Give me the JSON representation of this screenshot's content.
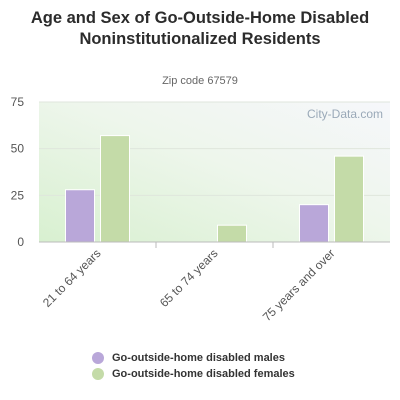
{
  "header": {
    "title": "Age and Sex of Go-Outside-Home Disabled Noninstitutionalized Residents",
    "subtitle": "Zip code 67579"
  },
  "watermark": "City-Data.com",
  "colors": {
    "males": "#b9a7d9",
    "females": "#c4dba8"
  },
  "chart_data": {
    "type": "bar",
    "title": "Age and Sex of Go-Outside-Home Disabled Noninstitutionalized Residents",
    "subtitle": "Zip code 67579",
    "categories": [
      "21 to 64 years",
      "65 to 74 years",
      "75 years and over"
    ],
    "series": [
      {
        "name": "Go-outside-home disabled males",
        "values": [
          28,
          0,
          20
        ]
      },
      {
        "name": "Go-outside-home disabled females",
        "values": [
          57,
          9,
          46
        ]
      }
    ],
    "ylim": [
      0,
      75
    ],
    "yticks": [
      0,
      25,
      50,
      75
    ],
    "grid": true,
    "legend": "bottom"
  }
}
